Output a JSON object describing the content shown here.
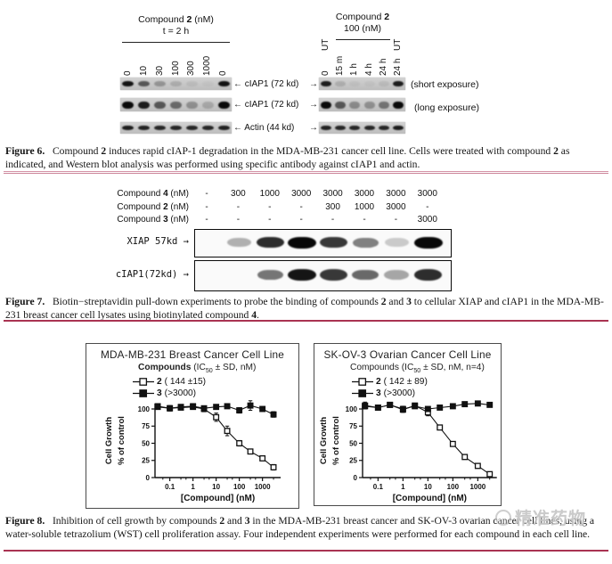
{
  "colors": {
    "rule_pink": "#d493a6",
    "rule_red": "#a93352",
    "band": "#0f0f0f",
    "strip_bg": "#c6c6c6"
  },
  "figure6": {
    "left": {
      "header_segments": [
        {
          "t": "Compound "
        },
        {
          "t": "2",
          "b": 1
        },
        {
          "t": " (nM)"
        }
      ],
      "subheader": "t = 2 h",
      "lanes": [
        "0",
        "10",
        "30",
        "100",
        "300",
        "1000",
        "0"
      ],
      "strips": [
        {
          "name": "cIAP1-short-exposure",
          "bands": [
            0.95,
            0.6,
            0.28,
            0.15,
            0.07,
            0.03,
            0.95
          ]
        },
        {
          "name": "cIAP1-long-exposure",
          "bands": [
            1,
            0.9,
            0.6,
            0.5,
            0.3,
            0.18,
            1
          ]
        },
        {
          "name": "actin",
          "bands": [
            0.9,
            0.87,
            0.85,
            0.85,
            0.85,
            0.85,
            0.88
          ]
        }
      ]
    },
    "right": {
      "header_segments": [
        {
          "t": "Compound "
        },
        {
          "t": "2",
          "b": 1
        }
      ],
      "subheader": "100 (nM)",
      "lanes": [
        {
          "top": "UT",
          "label": "0"
        },
        {
          "label": "15 m"
        },
        {
          "label": "1 h"
        },
        {
          "label": "4 h"
        },
        {
          "label": "24 h"
        },
        {
          "top": "UT",
          "label": "24 h"
        }
      ],
      "strips": [
        {
          "name": "cIAP1-short-exposure",
          "bands": [
            0.9,
            0.14,
            0.05,
            0.04,
            0.08,
            0.9
          ]
        },
        {
          "name": "cIAP1-long-exposure",
          "bands": [
            1,
            0.6,
            0.33,
            0.3,
            0.45,
            1
          ]
        },
        {
          "name": "actin",
          "bands": [
            0.88,
            0.85,
            0.85,
            0.85,
            0.85,
            0.9
          ]
        }
      ]
    },
    "row_labels": [
      {
        "text": "← cIAP1 (72 kd)",
        "right_arrow": "→"
      },
      {
        "text": "← cIAP1 (72 kd)",
        "right_arrow": "→"
      },
      {
        "text": "← Actin (44 kd)",
        "right_arrow": "→"
      }
    ],
    "exposure_labels": [
      "(short exposure)",
      "(long exposure)"
    ]
  },
  "figure7": {
    "rows": [
      {
        "label_segments": [
          {
            "t": "Compound "
          },
          {
            "t": "4",
            "b": 1
          },
          {
            "t": " (nM)"
          }
        ],
        "values": [
          "-",
          "300",
          "1000",
          "3000",
          "3000",
          "3000",
          "3000",
          "3000"
        ]
      },
      {
        "label_segments": [
          {
            "t": "Compound "
          },
          {
            "t": "2",
            "b": 1
          },
          {
            "t": " (nM)"
          }
        ],
        "values": [
          "-",
          "-",
          "-",
          "-",
          "300",
          "1000",
          "3000",
          "-"
        ]
      },
      {
        "label_segments": [
          {
            "t": "Compound "
          },
          {
            "t": "3",
            "b": 1
          },
          {
            "t": " (nM)"
          }
        ],
        "values": [
          "-",
          "-",
          "-",
          "-",
          "-",
          "-",
          "-",
          "3000"
        ]
      }
    ],
    "blots": [
      {
        "label": "XIAP 57kd →",
        "bands": [
          0,
          0.3,
          0.85,
          1,
          0.8,
          0.5,
          0.2,
          1
        ]
      },
      {
        "label": "cIAP1(72kd) →",
        "bands": [
          0,
          0,
          0.55,
          0.95,
          0.8,
          0.6,
          0.35,
          0.85
        ]
      }
    ]
  },
  "captions": {
    "fig6": {
      "label": "Figure 6.",
      "segments": [
        {
          "t": "Compound "
        },
        {
          "t": "2",
          "b": 1
        },
        {
          "t": " induces rapid cIAP-1 degradation in the MDA-MB-231 cancer cell line. Cells were treated with compound "
        },
        {
          "t": "2",
          "b": 1
        },
        {
          "t": " as indicated, and Western blot analysis was performed using specific antibody against cIAP1 and actin."
        }
      ]
    },
    "fig7": {
      "label": "Figure 7.",
      "segments": [
        {
          "t": "Biotin−streptavidin pull-down experiments to probe the binding of compounds "
        },
        {
          "t": "2",
          "b": 1
        },
        {
          "t": " and "
        },
        {
          "t": "3",
          "b": 1
        },
        {
          "t": " to cellular XIAP and cIAP1 in the MDA-MB-231 breast cancer cell lysates using biotinylated compound "
        },
        {
          "t": "4",
          "b": 1
        },
        {
          "t": "."
        }
      ]
    },
    "fig8": {
      "label": "Figure 8.",
      "segments": [
        {
          "t": "Inhibition of cell growth by compounds "
        },
        {
          "t": "2",
          "b": 1
        },
        {
          "t": " and "
        },
        {
          "t": "3",
          "b": 1
        },
        {
          "t": " in the MDA-MB-231 breast cancer and SK-OV-3 ovarian cancer cell lines, using a water-soluble tetrazolium (WST) cell proliferation assay. Four independent experiments were performed for each compound in each cell line."
        }
      ]
    }
  },
  "chart_data": [
    {
      "type": "line",
      "title": "MDA-MB-231 Breast Cancer Cell Line",
      "legend_header_segments": [
        {
          "t": "Compounds",
          "b": 1
        },
        {
          "t": " (IC"
        },
        {
          "t": "50",
          "sub": 1
        },
        {
          "t": " ± SD, nM)"
        }
      ],
      "legend_position": "top-inside",
      "xlabel": "[Compound] (nM)",
      "ylabel_line1": "Cell Growth",
      "ylabel_line2": "% of control",
      "xscale": "log",
      "x": [
        0.03,
        0.1,
        0.3,
        1,
        3,
        10,
        30,
        100,
        300,
        1000,
        3000
      ],
      "xticks": [
        0.1,
        1,
        10,
        100,
        1000
      ],
      "xtick_labels": [
        "0.1",
        "1",
        "10",
        "100",
        "1000"
      ],
      "xminor": [
        0.05,
        0.3,
        0.5,
        3,
        5,
        30,
        50,
        300,
        500,
        3000
      ],
      "ylim": [
        0,
        112
      ],
      "yticks": [
        0,
        25,
        50,
        75,
        100
      ],
      "grid": false,
      "series": [
        {
          "name": "2",
          "ic50": "( 144 ±15)",
          "marker": "open-square",
          "y": [
            104,
            101,
            102,
            103,
            100,
            88,
            68,
            50,
            38,
            28,
            15
          ],
          "err": [
            3,
            4,
            3,
            3,
            4,
            6,
            7,
            4,
            3,
            3,
            4
          ]
        },
        {
          "name": "3",
          "ic50": "(>3000)",
          "marker": "filled-square",
          "y": [
            103,
            101,
            103,
            104,
            101,
            103,
            104,
            98,
            105,
            100,
            92
          ],
          "err": [
            2,
            3,
            2,
            2,
            3,
            2,
            3,
            4,
            7,
            3,
            4
          ]
        }
      ]
    },
    {
      "type": "line",
      "title": "SK-OV-3 Ovarian Cancer Cell Line",
      "legend_header_segments": [
        {
          "t": "Compounds (IC"
        },
        {
          "t": "50",
          "sub": 1
        },
        {
          "t": " ± SD, nM, n=4)"
        }
      ],
      "legend_position": "top-inside",
      "xlabel": "[Compound] (nM)",
      "ylabel_line1": "Cell Growth",
      "ylabel_line2": "% of control",
      "xscale": "log",
      "x": [
        0.03,
        0.1,
        0.3,
        1,
        3,
        10,
        30,
        100,
        300,
        1000,
        3000
      ],
      "xticks": [
        0.1,
        1,
        10,
        100,
        1000
      ],
      "xtick_labels": [
        "0.1",
        "1",
        "10",
        "100",
        "1000"
      ],
      "xminor": [
        0.05,
        0.3,
        0.5,
        3,
        5,
        30,
        50,
        300,
        500,
        3000
      ],
      "ylim": [
        0,
        112
      ],
      "yticks": [
        0,
        25,
        50,
        75,
        100
      ],
      "grid": false,
      "series": [
        {
          "name": "2",
          "ic50": "( 142 ± 89)",
          "marker": "open-square",
          "y": [
            105,
            102,
            106,
            99,
            105,
            95,
            73,
            49,
            30,
            17,
            5
          ],
          "err": [
            5,
            3,
            3,
            4,
            3,
            5,
            3,
            3,
            3,
            3,
            3
          ]
        },
        {
          "name": "3",
          "ic50": "(>3000)",
          "marker": "filled-square",
          "y": [
            104,
            102,
            106,
            100,
            104,
            100,
            102,
            104,
            107,
            108,
            106
          ],
          "err": [
            4,
            3,
            3,
            4,
            3,
            3,
            2,
            2,
            2,
            2,
            3
          ]
        }
      ]
    }
  ],
  "watermark": {
    "text": "精准药物"
  }
}
